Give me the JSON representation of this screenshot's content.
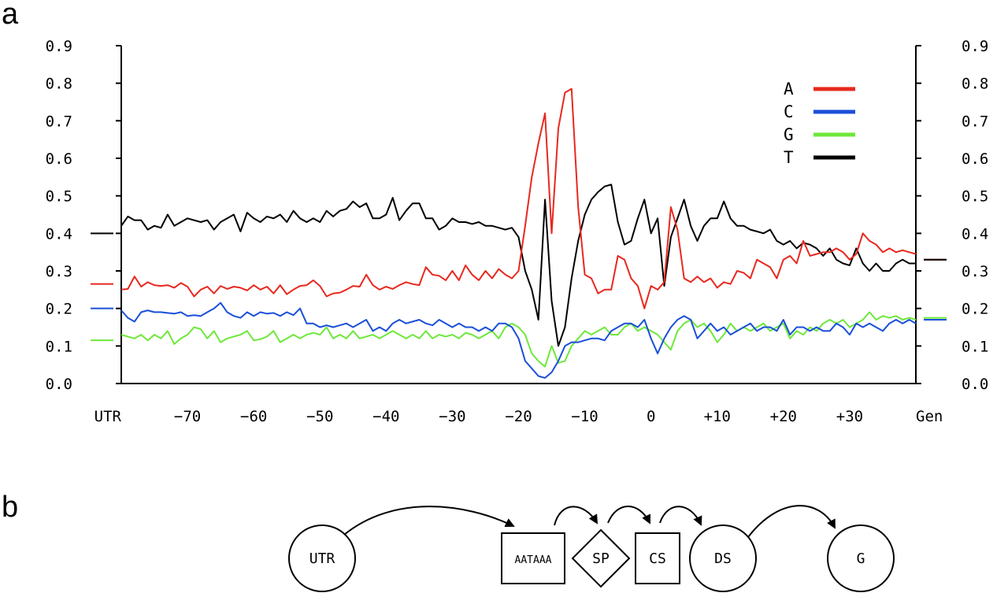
{
  "panel_labels": {
    "a": "a",
    "b": "b"
  },
  "chart_data": {
    "type": "line",
    "title": "",
    "xlabel": "",
    "ylabel": "",
    "xlim": [
      -80,
      40
    ],
    "ylim": [
      0.0,
      0.9
    ],
    "x_tick_labels": [
      {
        "x": -80,
        "label": "UTR"
      },
      {
        "x": -70,
        "label": "−70"
      },
      {
        "x": -60,
        "label": "−60"
      },
      {
        "x": -50,
        "label": "−50"
      },
      {
        "x": -40,
        "label": "−40"
      },
      {
        "x": -30,
        "label": "−30"
      },
      {
        "x": -20,
        "label": "−20"
      },
      {
        "x": -10,
        "label": "−10"
      },
      {
        "x": 0,
        "label": "0"
      },
      {
        "x": 10,
        "label": "+10"
      },
      {
        "x": 20,
        "label": "+20"
      },
      {
        "x": 30,
        "label": "+30"
      },
      {
        "x": 40,
        "label": "Gen"
      }
    ],
    "y_ticks": [
      0.0,
      0.1,
      0.2,
      0.3,
      0.4,
      0.5,
      0.6,
      0.7,
      0.8,
      0.9
    ],
    "y_tick_labels": [
      "0.0",
      "0.1",
      "0.2",
      "0.3",
      "0.4",
      "0.5",
      "0.6",
      "0.7",
      "0.8",
      "0.9"
    ],
    "legend_position": "top-right",
    "grid": false,
    "x": [
      -80,
      -79,
      -78,
      -77,
      -76,
      -75,
      -74,
      -73,
      -72,
      -71,
      -70,
      -69,
      -68,
      -67,
      -66,
      -65,
      -64,
      -63,
      -62,
      -61,
      -60,
      -59,
      -58,
      -57,
      -56,
      -55,
      -54,
      -53,
      -52,
      -51,
      -50,
      -49,
      -48,
      -47,
      -46,
      -45,
      -44,
      -43,
      -42,
      -41,
      -40,
      -39,
      -38,
      -37,
      -36,
      -35,
      -34,
      -33,
      -32,
      -31,
      -30,
      -29,
      -28,
      -27,
      -26,
      -25,
      -24,
      -23,
      -22,
      -21,
      -20,
      -19,
      -18,
      -17,
      -16,
      -15,
      -14,
      -13,
      -12,
      -11,
      -10,
      -9,
      -8,
      -7,
      -6,
      -5,
      -4,
      -3,
      -2,
      -1,
      0,
      1,
      2,
      3,
      4,
      5,
      6,
      7,
      8,
      9,
      10,
      11,
      12,
      13,
      14,
      15,
      16,
      17,
      18,
      19,
      20,
      21,
      22,
      23,
      24,
      25,
      26,
      27,
      28,
      29,
      30,
      31,
      32,
      33,
      34,
      35,
      36,
      37,
      38,
      39,
      40
    ],
    "series": [
      {
        "name": "A",
        "color": "#e8281e",
        "background": 0.265,
        "genomic": 0.33,
        "values": [
          0.25,
          0.252,
          0.285,
          0.258,
          0.27,
          0.262,
          0.26,
          0.262,
          0.255,
          0.268,
          0.258,
          0.232,
          0.25,
          0.258,
          0.24,
          0.26,
          0.252,
          0.258,
          0.255,
          0.248,
          0.262,
          0.25,
          0.258,
          0.24,
          0.262,
          0.238,
          0.25,
          0.26,
          0.262,
          0.275,
          0.26,
          0.232,
          0.24,
          0.242,
          0.25,
          0.26,
          0.258,
          0.29,
          0.262,
          0.25,
          0.258,
          0.252,
          0.262,
          0.27,
          0.265,
          0.262,
          0.31,
          0.29,
          0.287,
          0.275,
          0.3,
          0.275,
          0.315,
          0.29,
          0.275,
          0.3,
          0.28,
          0.305,
          0.29,
          0.28,
          0.3,
          0.42,
          0.55,
          0.64,
          0.72,
          0.4,
          0.68,
          0.775,
          0.785,
          0.47,
          0.29,
          0.28,
          0.24,
          0.25,
          0.25,
          0.34,
          0.33,
          0.28,
          0.26,
          0.2,
          0.26,
          0.25,
          0.27,
          0.47,
          0.41,
          0.28,
          0.27,
          0.285,
          0.27,
          0.28,
          0.255,
          0.27,
          0.265,
          0.3,
          0.295,
          0.28,
          0.33,
          0.32,
          0.31,
          0.28,
          0.33,
          0.34,
          0.32,
          0.38,
          0.34,
          0.345,
          0.35,
          0.35,
          0.36,
          0.35,
          0.33,
          0.345,
          0.4,
          0.38,
          0.37,
          0.35,
          0.36,
          0.35,
          0.355,
          0.35,
          0.345
        ]
      },
      {
        "name": "C",
        "color": "#1a4fd8",
        "background": 0.2,
        "genomic": 0.17,
        "values": [
          0.195,
          0.175,
          0.165,
          0.19,
          0.195,
          0.19,
          0.19,
          0.188,
          0.186,
          0.19,
          0.18,
          0.182,
          0.18,
          0.19,
          0.2,
          0.215,
          0.19,
          0.18,
          0.175,
          0.19,
          0.18,
          0.19,
          0.186,
          0.188,
          0.18,
          0.19,
          0.182,
          0.2,
          0.16,
          0.16,
          0.15,
          0.155,
          0.15,
          0.155,
          0.16,
          0.15,
          0.16,
          0.17,
          0.14,
          0.15,
          0.14,
          0.16,
          0.17,
          0.16,
          0.165,
          0.17,
          0.16,
          0.155,
          0.17,
          0.16,
          0.15,
          0.16,
          0.15,
          0.15,
          0.14,
          0.15,
          0.14,
          0.16,
          0.16,
          0.15,
          0.12,
          0.06,
          0.04,
          0.02,
          0.015,
          0.03,
          0.06,
          0.1,
          0.11,
          0.11,
          0.115,
          0.12,
          0.12,
          0.115,
          0.14,
          0.15,
          0.16,
          0.16,
          0.15,
          0.17,
          0.12,
          0.08,
          0.12,
          0.15,
          0.17,
          0.18,
          0.17,
          0.12,
          0.14,
          0.16,
          0.14,
          0.15,
          0.13,
          0.14,
          0.15,
          0.16,
          0.14,
          0.15,
          0.15,
          0.14,
          0.17,
          0.13,
          0.15,
          0.15,
          0.14,
          0.15,
          0.14,
          0.14,
          0.16,
          0.15,
          0.13,
          0.16,
          0.15,
          0.16,
          0.15,
          0.14,
          0.16,
          0.17,
          0.16,
          0.17,
          0.16
        ]
      },
      {
        "name": "G",
        "color": "#6ee83a",
        "background": 0.115,
        "genomic": 0.175,
        "values": [
          0.13,
          0.125,
          0.12,
          0.13,
          0.115,
          0.13,
          0.12,
          0.14,
          0.105,
          0.12,
          0.13,
          0.15,
          0.145,
          0.12,
          0.14,
          0.11,
          0.12,
          0.125,
          0.13,
          0.14,
          0.115,
          0.118,
          0.125,
          0.14,
          0.11,
          0.12,
          0.13,
          0.12,
          0.13,
          0.135,
          0.13,
          0.15,
          0.12,
          0.13,
          0.12,
          0.14,
          0.12,
          0.125,
          0.13,
          0.12,
          0.13,
          0.14,
          0.13,
          0.12,
          0.13,
          0.12,
          0.14,
          0.12,
          0.13,
          0.125,
          0.13,
          0.12,
          0.135,
          0.13,
          0.12,
          0.13,
          0.14,
          0.12,
          0.15,
          0.16,
          0.15,
          0.13,
          0.08,
          0.06,
          0.045,
          0.1,
          0.055,
          0.06,
          0.1,
          0.12,
          0.14,
          0.13,
          0.14,
          0.15,
          0.13,
          0.13,
          0.15,
          0.16,
          0.14,
          0.15,
          0.14,
          0.13,
          0.11,
          0.09,
          0.14,
          0.16,
          0.17,
          0.15,
          0.16,
          0.14,
          0.11,
          0.13,
          0.16,
          0.14,
          0.15,
          0.14,
          0.15,
          0.16,
          0.14,
          0.15,
          0.16,
          0.12,
          0.14,
          0.13,
          0.15,
          0.14,
          0.16,
          0.17,
          0.16,
          0.17,
          0.15,
          0.16,
          0.17,
          0.19,
          0.17,
          0.18,
          0.175,
          0.18,
          0.17,
          0.175,
          0.17
        ]
      },
      {
        "name": "T",
        "color": "#000000",
        "background": 0.4,
        "genomic": 0.33,
        "values": [
          0.42,
          0.445,
          0.435,
          0.435,
          0.41,
          0.42,
          0.415,
          0.45,
          0.42,
          0.43,
          0.44,
          0.435,
          0.43,
          0.435,
          0.41,
          0.43,
          0.44,
          0.45,
          0.405,
          0.455,
          0.44,
          0.43,
          0.445,
          0.44,
          0.45,
          0.43,
          0.46,
          0.44,
          0.43,
          0.44,
          0.43,
          0.46,
          0.445,
          0.46,
          0.465,
          0.485,
          0.47,
          0.48,
          0.44,
          0.44,
          0.45,
          0.495,
          0.435,
          0.46,
          0.48,
          0.48,
          0.44,
          0.44,
          0.41,
          0.42,
          0.44,
          0.43,
          0.43,
          0.425,
          0.43,
          0.42,
          0.42,
          0.415,
          0.41,
          0.415,
          0.39,
          0.3,
          0.25,
          0.17,
          0.49,
          0.22,
          0.1,
          0.15,
          0.28,
          0.38,
          0.45,
          0.49,
          0.51,
          0.525,
          0.53,
          0.43,
          0.37,
          0.38,
          0.44,
          0.49,
          0.4,
          0.44,
          0.26,
          0.39,
          0.44,
          0.49,
          0.42,
          0.38,
          0.42,
          0.44,
          0.44,
          0.485,
          0.44,
          0.42,
          0.42,
          0.41,
          0.405,
          0.4,
          0.41,
          0.38,
          0.37,
          0.38,
          0.36,
          0.375,
          0.37,
          0.36,
          0.34,
          0.36,
          0.33,
          0.32,
          0.315,
          0.36,
          0.32,
          0.3,
          0.32,
          0.3,
          0.3,
          0.32,
          0.33,
          0.32,
          0.32
        ]
      }
    ]
  },
  "diagram": {
    "nodes": [
      {
        "id": "utr",
        "shape": "circle",
        "label": "UTR"
      },
      {
        "id": "aataaa",
        "shape": "square",
        "label": "AATAAA"
      },
      {
        "id": "sp",
        "shape": "diamond",
        "label": "SP"
      },
      {
        "id": "cs",
        "shape": "square",
        "label": "CS"
      },
      {
        "id": "ds",
        "shape": "circle",
        "label": "DS"
      },
      {
        "id": "g",
        "shape": "circle",
        "label": "G"
      }
    ],
    "edges": [
      {
        "from": "utr",
        "to": "aataaa"
      },
      {
        "from": "aataaa",
        "to": "sp"
      },
      {
        "from": "sp",
        "to": "cs"
      },
      {
        "from": "cs",
        "to": "ds"
      },
      {
        "from": "ds",
        "to": "g"
      }
    ]
  }
}
